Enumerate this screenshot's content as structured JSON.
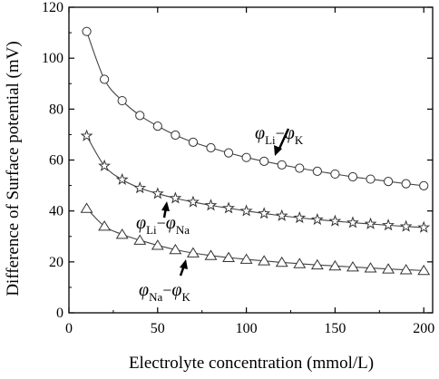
{
  "chart_data": {
    "type": "line",
    "xlabel": "Electrolyte concentration  (mmol/L)",
    "ylabel": "Difference of Surface potential  (mV)",
    "xlim": [
      0,
      205
    ],
    "ylim": [
      0,
      120
    ],
    "xticks": [
      0,
      50,
      100,
      150,
      200
    ],
    "yticks": [
      0,
      20,
      40,
      60,
      80,
      100,
      120
    ],
    "grid": false,
    "x": [
      10,
      20,
      30,
      40,
      50,
      60,
      70,
      80,
      90,
      100,
      110,
      120,
      130,
      140,
      150,
      160,
      170,
      180,
      190,
      200
    ],
    "series": [
      {
        "name": "φLi−φK",
        "marker": "circle",
        "values": [
          110.5,
          91.7,
          83.3,
          77.5,
          73.3,
          69.8,
          67.0,
          64.8,
          62.8,
          61.0,
          59.5,
          58.1,
          56.8,
          55.6,
          54.5,
          53.4,
          52.5,
          51.6,
          50.7,
          49.9
        ]
      },
      {
        "name": "φLi−φNa",
        "marker": "star",
        "values": [
          69.5,
          57.7,
          52.3,
          49.0,
          46.8,
          45.0,
          43.5,
          42.2,
          41.1,
          40.0,
          39.0,
          38.1,
          37.3,
          36.6,
          36.0,
          35.4,
          34.9,
          34.4,
          33.9,
          33.5
        ]
      },
      {
        "name": "φNa−φK",
        "marker": "triangle",
        "values": [
          41.0,
          34.0,
          30.8,
          28.5,
          26.5,
          24.8,
          23.5,
          22.5,
          21.7,
          21.0,
          20.4,
          19.8,
          19.3,
          18.8,
          18.4,
          18.0,
          17.6,
          17.2,
          16.9,
          16.6
        ]
      }
    ],
    "annotations": [
      {
        "phi_a": "φ",
        "sub_a": "Li",
        "minus": "−",
        "phi_b": "φ",
        "sub_b": "K"
      },
      {
        "phi_a": "φ",
        "sub_a": "Li",
        "minus": "−",
        "phi_b": "φ",
        "sub_b": "Na"
      },
      {
        "phi_a": "φ",
        "sub_a": "Na",
        "minus": "−",
        "phi_b": "φ",
        "sub_b": "K"
      }
    ]
  }
}
